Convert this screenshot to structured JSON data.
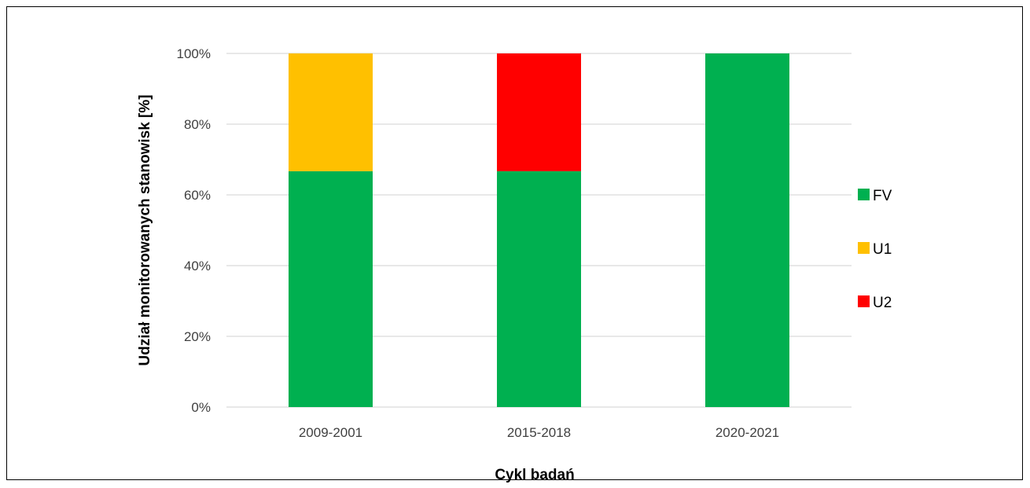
{
  "chart_data": {
    "type": "bar",
    "stacked": true,
    "percent": true,
    "title": "",
    "xlabel": "Cykl badań",
    "ylabel": "Udział monitorowanych stanowisk [%]",
    "ylim": [
      0,
      100
    ],
    "yticks": [
      "0%",
      "20%",
      "40%",
      "60%",
      "80%",
      "100%"
    ],
    "grid": true,
    "legend_position": "right",
    "categories": [
      "2009-2001",
      "2015-2018",
      "2020-2021"
    ],
    "series": [
      {
        "name": "FV",
        "color": "#00b050",
        "values": [
          66.7,
          66.7,
          100
        ]
      },
      {
        "name": "U1",
        "color": "#ffc000",
        "values": [
          33.3,
          0,
          0
        ]
      },
      {
        "name": "U2",
        "color": "#ff0000",
        "values": [
          0,
          33.3,
          0
        ]
      }
    ]
  }
}
